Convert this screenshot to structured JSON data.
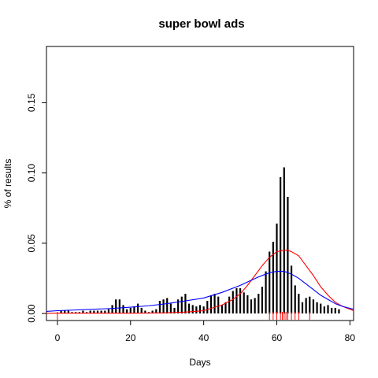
{
  "chart_data": {
    "type": "bar",
    "title": "super bowl ads",
    "xlabel": "Days",
    "ylabel": "% of results",
    "xlim": [
      -3,
      81
    ],
    "ylim": [
      -0.005,
      0.19
    ],
    "xticks": [
      0,
      20,
      40,
      60,
      80
    ],
    "yticks": [
      0.0,
      0.05,
      0.1,
      0.15
    ],
    "ytick_labels": [
      "0.00",
      "0.05",
      "0.10",
      "0.15"
    ],
    "series": [
      {
        "kind": "bars",
        "color": "#000000",
        "x": [
          1,
          2,
          3,
          4,
          5,
          6,
          7,
          8,
          9,
          10,
          11,
          12,
          13,
          14,
          15,
          16,
          17,
          18,
          19,
          20,
          21,
          22,
          23,
          24,
          25,
          26,
          27,
          28,
          29,
          30,
          31,
          32,
          33,
          34,
          35,
          36,
          37,
          38,
          39,
          40,
          41,
          42,
          43,
          44,
          45,
          46,
          47,
          48,
          49,
          50,
          51,
          52,
          53,
          54,
          55,
          56,
          57,
          58,
          59,
          60,
          61,
          62,
          63,
          64,
          65,
          66,
          67,
          68,
          69,
          70,
          71,
          72,
          73,
          74,
          75,
          76,
          77
        ],
        "values": [
          0.002,
          0.002,
          0.002,
          0.001,
          0.001,
          0.001,
          0.002,
          0.001,
          0.002,
          0.002,
          0.002,
          0.002,
          0.002,
          0.003,
          0.006,
          0.01,
          0.01,
          0.006,
          0.003,
          0.004,
          0.005,
          0.007,
          0.004,
          0.002,
          0.001,
          0.002,
          0.003,
          0.009,
          0.01,
          0.011,
          0.007,
          0.004,
          0.01,
          0.012,
          0.014,
          0.007,
          0.006,
          0.005,
          0.006,
          0.005,
          0.009,
          0.013,
          0.014,
          0.012,
          0.006,
          0.008,
          0.012,
          0.016,
          0.018,
          0.018,
          0.015,
          0.013,
          0.01,
          0.011,
          0.014,
          0.019,
          0.03,
          0.044,
          0.051,
          0.064,
          0.097,
          0.104,
          0.083,
          0.034,
          0.02,
          0.014,
          0.008,
          0.011,
          0.012,
          0.01,
          0.008,
          0.007,
          0.005,
          0.006,
          0.004,
          0.004,
          0.003
        ]
      },
      {
        "kind": "curve",
        "color": "#ff0000",
        "x": [
          -3,
          0,
          5,
          10,
          15,
          20,
          25,
          30,
          35,
          40,
          45,
          48,
          50,
          52,
          54,
          56,
          58,
          60,
          62,
          63,
          64,
          66,
          68,
          70,
          72,
          74,
          76,
          78,
          81
        ],
        "values": [
          0.0001,
          0.0002,
          0.0002,
          0.0002,
          0.0002,
          0.0002,
          0.0003,
          0.0005,
          0.001,
          0.002,
          0.006,
          0.01,
          0.014,
          0.02,
          0.027,
          0.034,
          0.04,
          0.044,
          0.045,
          0.045,
          0.044,
          0.041,
          0.034,
          0.027,
          0.019,
          0.013,
          0.008,
          0.005,
          0.002
        ]
      },
      {
        "kind": "curve",
        "color": "#0000ff",
        "x": [
          -3,
          0,
          5,
          10,
          15,
          20,
          25,
          30,
          35,
          40,
          45,
          50,
          55,
          58,
          60,
          62,
          64,
          66,
          68,
          70,
          72,
          74,
          76,
          78,
          81
        ],
        "values": [
          0.0015,
          0.002,
          0.0025,
          0.003,
          0.0036,
          0.0045,
          0.0055,
          0.007,
          0.009,
          0.011,
          0.015,
          0.02,
          0.026,
          0.029,
          0.03,
          0.03,
          0.028,
          0.025,
          0.021,
          0.017,
          0.013,
          0.01,
          0.007,
          0.005,
          0.003
        ]
      }
    ],
    "rug": {
      "color": "#ff0000",
      "x": [
        0,
        58,
        59,
        60,
        61,
        61.5,
        62,
        62.5,
        63,
        64,
        65,
        66,
        69
      ]
    }
  }
}
